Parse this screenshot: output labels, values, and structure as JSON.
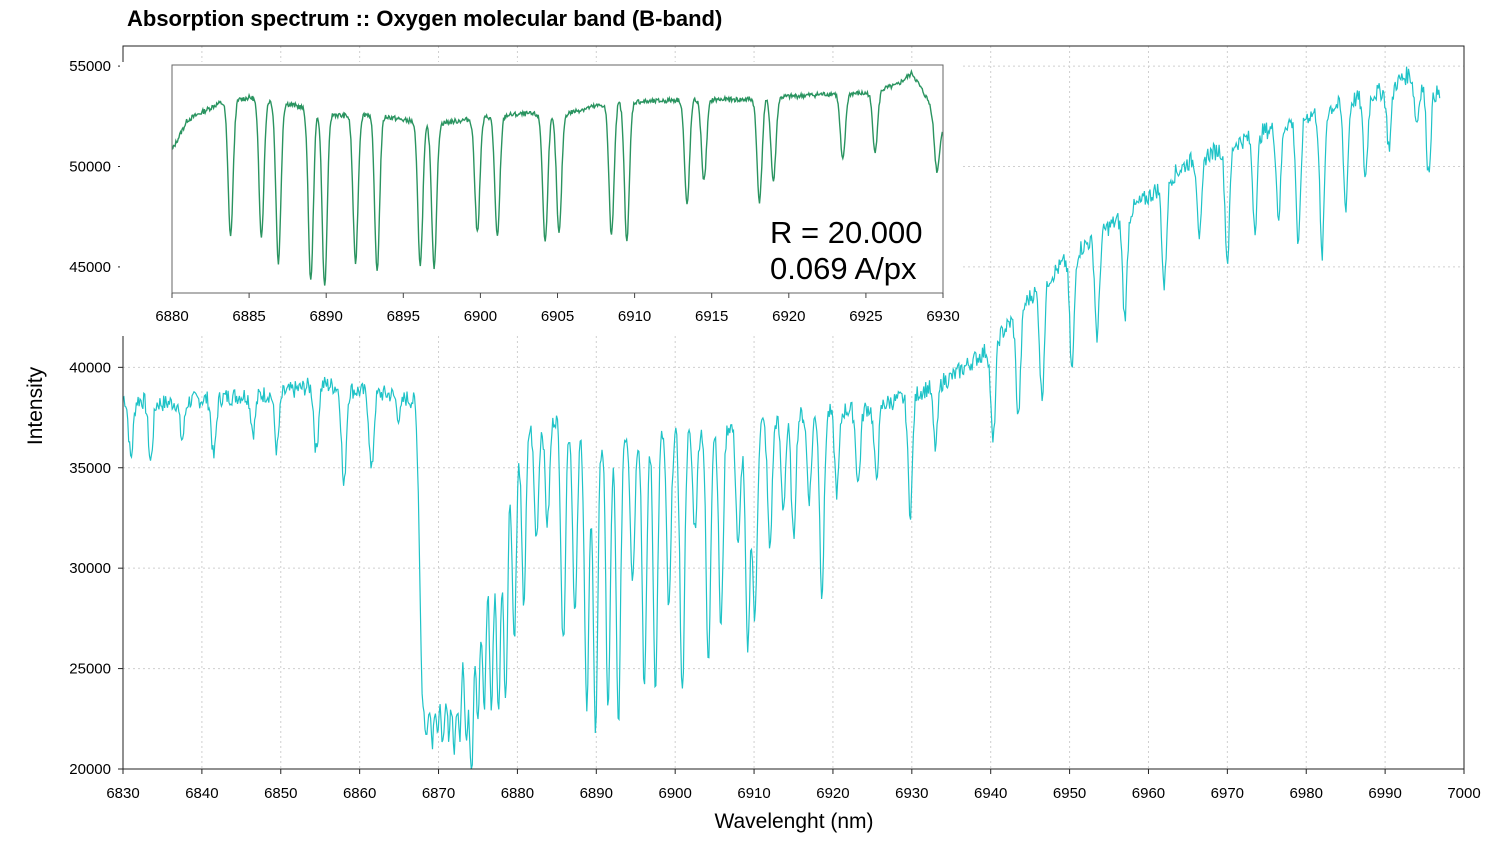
{
  "chart_data": [
    {
      "id": "main",
      "type": "line",
      "title": "Absorption spectrum :: Oxygen molecular band (B-band)",
      "xlabel": "Wavelenght (nm)",
      "ylabel": "Intensity",
      "xlim": [
        6830,
        7000
      ],
      "ylim": [
        20000,
        56000
      ],
      "x_ticks": [
        6830,
        6840,
        6850,
        6860,
        6870,
        6880,
        6890,
        6900,
        6910,
        6920,
        6930,
        6940,
        6950,
        6960,
        6970,
        6980,
        6990,
        7000
      ],
      "y_ticks": [
        20000,
        25000,
        30000,
        35000,
        40000,
        45000,
        50000,
        55000
      ],
      "grid": true,
      "series_color": "#1fc3c7",
      "continuum": [
        [
          6830,
          38500
        ],
        [
          6835,
          38200
        ],
        [
          6840,
          38400
        ],
        [
          6845,
          38600
        ],
        [
          6850,
          38700
        ],
        [
          6855,
          39200
        ],
        [
          6860,
          38800
        ],
        [
          6865,
          38600
        ],
        [
          6867,
          38300
        ],
        [
          6868,
          33000
        ],
        [
          6870,
          31000
        ],
        [
          6872,
          33000
        ],
        [
          6875,
          35000
        ],
        [
          6880,
          37000
        ],
        [
          6885,
          37500
        ],
        [
          6890,
          36500
        ],
        [
          6895,
          36800
        ],
        [
          6900,
          36800
        ],
        [
          6905,
          37000
        ],
        [
          6910,
          37200
        ],
        [
          6915,
          37600
        ],
        [
          6920,
          37800
        ],
        [
          6925,
          38000
        ],
        [
          6930,
          38600
        ],
        [
          6935,
          39500
        ],
        [
          6940,
          41000
        ],
        [
          6945,
          43500
        ],
        [
          6950,
          45500
        ],
        [
          6955,
          47000
        ],
        [
          6960,
          48500
        ],
        [
          6965,
          50200
        ],
        [
          6970,
          51000
        ],
        [
          6975,
          51800
        ],
        [
          6980,
          52500
        ],
        [
          6985,
          53200
        ],
        [
          6990,
          53800
        ],
        [
          6993,
          54600
        ],
        [
          6997,
          53500
        ]
      ],
      "absorption_lines": [
        [
          6831.0,
          35500
        ],
        [
          6833.5,
          35300
        ],
        [
          6837.5,
          36400
        ],
        [
          6841.5,
          35500
        ],
        [
          6846.5,
          36800
        ],
        [
          6849.5,
          35900
        ],
        [
          6854.5,
          35800
        ],
        [
          6858.0,
          34000
        ],
        [
          6861.5,
          34800
        ],
        [
          6865.0,
          37500
        ],
        [
          6867.9,
          25200
        ],
        [
          6868.5,
          22800
        ],
        [
          6869.2,
          22200
        ],
        [
          6869.9,
          22600
        ],
        [
          6870.6,
          21900
        ],
        [
          6871.3,
          22700
        ],
        [
          6872.0,
          21800
        ],
        [
          6872.7,
          22400
        ],
        [
          6873.5,
          22200
        ],
        [
          6874.2,
          20600
        ],
        [
          6875.0,
          23000
        ],
        [
          6875.8,
          23200
        ],
        [
          6876.7,
          23100
        ],
        [
          6877.6,
          22800
        ],
        [
          6878.5,
          23700
        ],
        [
          6879.6,
          26600
        ],
        [
          6880.8,
          28300
        ],
        [
          6882.4,
          31500
        ],
        [
          6883.8,
          32200
        ],
        [
          6885.8,
          26200
        ],
        [
          6887.3,
          27700
        ],
        [
          6888.8,
          22800
        ],
        [
          6889.9,
          21900
        ],
        [
          6891.5,
          23000
        ],
        [
          6892.8,
          22300
        ],
        [
          6894.6,
          29500
        ],
        [
          6896.1,
          24100
        ],
        [
          6897.5,
          24200
        ],
        [
          6899.2,
          27900
        ],
        [
          6900.9,
          23600
        ],
        [
          6902.5,
          32000
        ],
        [
          6904.2,
          25200
        ],
        [
          6905.8,
          27000
        ],
        [
          6908.0,
          31000
        ],
        [
          6909.2,
          25700
        ],
        [
          6910.1,
          27400
        ],
        [
          6912.0,
          31000
        ],
        [
          6913.7,
          33000
        ],
        [
          6915.0,
          31500
        ],
        [
          6917.0,
          33500
        ],
        [
          6918.6,
          28800
        ],
        [
          6920.5,
          33800
        ],
        [
          6923.2,
          34200
        ],
        [
          6925.5,
          34500
        ],
        [
          6929.8,
          32800
        ],
        [
          6933.0,
          36000
        ],
        [
          6940.3,
          36200
        ],
        [
          6943.5,
          37500
        ],
        [
          6946.5,
          38500
        ],
        [
          6950.3,
          39800
        ],
        [
          6953.5,
          41500
        ],
        [
          6957.0,
          42500
        ],
        [
          6962.0,
          44000
        ],
        [
          6966.5,
          46500
        ],
        [
          6970.0,
          45300
        ],
        [
          6973.5,
          47000
        ],
        [
          6976.5,
          47500
        ],
        [
          6979.0,
          46000
        ],
        [
          6982.0,
          45500
        ],
        [
          6985.0,
          48000
        ],
        [
          6987.5,
          49500
        ],
        [
          6990.5,
          51000
        ],
        [
          6994.0,
          52200
        ],
        [
          6995.5,
          49700
        ]
      ]
    },
    {
      "id": "inset",
      "type": "line",
      "title": "",
      "xlabel": "",
      "ylabel": "",
      "xlim": [
        6880,
        6930
      ],
      "ylim": [
        44000,
        55200
      ],
      "x_ticks": [
        6880,
        6885,
        6890,
        6895,
        6900,
        6905,
        6910,
        6915,
        6920,
        6925,
        6930
      ],
      "series_color": "#2a9460",
      "annotation_lines": [
        "R = 20.000",
        "0.069 A/px"
      ],
      "continuum": [
        [
          6880,
          51000
        ],
        [
          6881,
          52500
        ],
        [
          6883,
          53300
        ],
        [
          6885,
          53600
        ],
        [
          6887,
          53400
        ],
        [
          6889,
          53000
        ],
        [
          6891,
          52700
        ],
        [
          6893,
          52800
        ],
        [
          6895,
          52500
        ],
        [
          6897,
          52300
        ],
        [
          6899,
          52500
        ],
        [
          6901,
          52700
        ],
        [
          6903,
          52800
        ],
        [
          6905,
          52700
        ],
        [
          6907,
          53100
        ],
        [
          6909,
          53400
        ],
        [
          6911,
          53400
        ],
        [
          6913,
          53500
        ],
        [
          6915,
          53500
        ],
        [
          6917,
          53500
        ],
        [
          6919,
          53600
        ],
        [
          6921,
          53700
        ],
        [
          6923,
          53800
        ],
        [
          6925,
          53800
        ],
        [
          6927,
          54200
        ],
        [
          6928,
          54800
        ],
        [
          6929,
          53500
        ],
        [
          6930,
          52000
        ]
      ],
      "absorption_lines": [
        [
          6883.8,
          46800
        ],
        [
          6885.8,
          46800
        ],
        [
          6886.9,
          45500
        ],
        [
          6889.0,
          44600
        ],
        [
          6889.9,
          44300
        ],
        [
          6891.9,
          45500
        ],
        [
          6893.3,
          45100
        ],
        [
          6896.1,
          45400
        ],
        [
          6897.0,
          45300
        ],
        [
          6899.8,
          47000
        ],
        [
          6901.1,
          46700
        ],
        [
          6904.2,
          46500
        ],
        [
          6905.1,
          46900
        ],
        [
          6908.5,
          46800
        ],
        [
          6909.5,
          46600
        ],
        [
          6913.4,
          48300
        ],
        [
          6914.5,
          49500
        ],
        [
          6918.1,
          48500
        ],
        [
          6919.0,
          49500
        ],
        [
          6923.5,
          50500
        ],
        [
          6925.6,
          51000
        ],
        [
          6929.6,
          50000
        ]
      ]
    }
  ]
}
